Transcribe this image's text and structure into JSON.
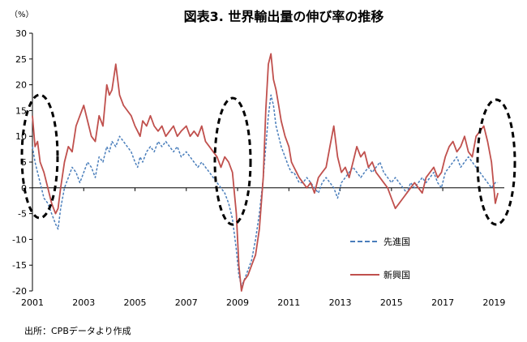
{
  "chart_data": {
    "type": "line",
    "title": "図表3. 世界輸出量の伸び率の推移",
    "unit_label": "（%）",
    "ylim": [
      -20,
      30
    ],
    "yticks": [
      30,
      25,
      20,
      15,
      10,
      5,
      0,
      -5,
      -10,
      -15,
      -20
    ],
    "xlim": [
      2001.0,
      2019.4
    ],
    "xticks": [
      2001,
      2003,
      2005,
      2007,
      2009,
      2011,
      2013,
      2015,
      2017,
      2019
    ],
    "xtick_labels": [
      "2001",
      "2003",
      "2005",
      "2007",
      "2009",
      "2011",
      "2013",
      "2015",
      "2017",
      "2019"
    ],
    "grid": false,
    "legend_placement": "right-middle",
    "source": "出所：CPBデータより作成",
    "series": [
      {
        "name": "先進国",
        "style": "dashed",
        "color": "#4a7ebb",
        "x": [
          2001.0,
          2001.1,
          2001.2,
          2001.3,
          2001.45,
          2001.6,
          2001.75,
          2001.9,
          2002.0,
          2002.1,
          2002.25,
          2002.4,
          2002.55,
          2002.7,
          2002.85,
          2003.0,
          2003.15,
          2003.3,
          2003.45,
          2003.6,
          2003.75,
          2003.9,
          2004.0,
          2004.1,
          2004.25,
          2004.4,
          2004.55,
          2004.7,
          2004.85,
          2005.0,
          2005.1,
          2005.2,
          2005.3,
          2005.45,
          2005.6,
          2005.75,
          2005.9,
          2006.05,
          2006.2,
          2006.35,
          2006.5,
          2006.65,
          2006.8,
          2007.0,
          2007.15,
          2007.3,
          2007.45,
          2007.6,
          2007.75,
          2007.9,
          2008.05,
          2008.2,
          2008.35,
          2008.5,
          2008.65,
          2008.8,
          2008.95,
          2009.05,
          2009.15,
          2009.25,
          2009.4,
          2009.55,
          2009.7,
          2009.85,
          2010.0,
          2010.1,
          2010.2,
          2010.3,
          2010.4,
          2010.5,
          2010.6,
          2010.7,
          2010.85,
          2011.0,
          2011.1,
          2011.2,
          2011.3,
          2011.4,
          2011.55,
          2011.7,
          2011.85,
          2012.0,
          2012.15,
          2012.3,
          2012.45,
          2012.6,
          2012.75,
          2012.9,
          2013.05,
          2013.2,
          2013.35,
          2013.5,
          2013.65,
          2013.8,
          2013.95,
          2014.1,
          2014.25,
          2014.4,
          2014.55,
          2014.7,
          2014.85,
          2015.0,
          2015.15,
          2015.3,
          2015.45,
          2015.6,
          2015.75,
          2015.9,
          2016.05,
          2016.2,
          2016.35,
          2016.5,
          2016.65,
          2016.8,
          2016.95,
          2017.1,
          2017.25,
          2017.4,
          2017.55,
          2017.7,
          2017.85,
          2018.0,
          2018.15,
          2018.3,
          2018.45,
          2018.6,
          2018.75,
          2018.9,
          2019.05,
          2019.15
        ],
        "values": [
          8,
          5,
          3,
          1,
          -2,
          -3,
          -5,
          -7,
          -8,
          -4,
          0,
          2,
          4,
          3,
          1,
          3,
          5,
          4,
          2,
          6,
          5,
          8,
          7,
          9,
          8,
          10,
          9,
          8,
          7,
          5,
          4,
          6,
          5,
          7,
          8,
          7,
          9,
          8,
          9,
          8,
          7,
          8,
          6,
          7,
          6,
          5,
          4,
          5,
          4,
          3,
          2,
          1,
          0,
          -1,
          -3,
          -6,
          -12,
          -17,
          -19,
          -18,
          -16,
          -14,
          -10,
          -5,
          2,
          8,
          14,
          18,
          16,
          12,
          10,
          8,
          6,
          4,
          3,
          3,
          2,
          1,
          1,
          2,
          1,
          0,
          -1,
          1,
          2,
          1,
          0,
          -2,
          1,
          2,
          3,
          4,
          3,
          2,
          3,
          4,
          3,
          4,
          5,
          3,
          2,
          1,
          2,
          1,
          0,
          -1,
          1,
          0,
          1,
          2,
          1,
          2,
          3,
          1,
          0,
          3,
          4,
          5,
          6,
          4,
          5,
          6,
          5,
          4,
          3,
          2,
          1,
          0,
          1,
          1
        ]
      },
      {
        "name": "新興国",
        "style": "solid",
        "color": "#c0504d",
        "x": [
          2001.0,
          2001.1,
          2001.2,
          2001.3,
          2001.45,
          2001.6,
          2001.75,
          2001.9,
          2002.0,
          2002.1,
          2002.25,
          2002.4,
          2002.55,
          2002.7,
          2002.85,
          2003.0,
          2003.15,
          2003.3,
          2003.45,
          2003.6,
          2003.75,
          2003.9,
          2004.0,
          2004.1,
          2004.25,
          2004.4,
          2004.55,
          2004.7,
          2004.85,
          2005.0,
          2005.1,
          2005.2,
          2005.3,
          2005.45,
          2005.6,
          2005.75,
          2005.9,
          2006.05,
          2006.2,
          2006.35,
          2006.5,
          2006.65,
          2006.8,
          2007.0,
          2007.15,
          2007.3,
          2007.45,
          2007.6,
          2007.75,
          2007.9,
          2008.05,
          2008.2,
          2008.35,
          2008.5,
          2008.65,
          2008.8,
          2008.95,
          2009.05,
          2009.15,
          2009.25,
          2009.4,
          2009.55,
          2009.7,
          2009.85,
          2010.0,
          2010.1,
          2010.2,
          2010.3,
          2010.4,
          2010.5,
          2010.6,
          2010.7,
          2010.85,
          2011.0,
          2011.1,
          2011.2,
          2011.3,
          2011.4,
          2011.55,
          2011.7,
          2011.85,
          2012.0,
          2012.15,
          2012.3,
          2012.45,
          2012.6,
          2012.75,
          2012.9,
          2013.05,
          2013.2,
          2013.35,
          2013.5,
          2013.65,
          2013.8,
          2013.95,
          2014.1,
          2014.25,
          2014.4,
          2014.55,
          2014.7,
          2014.85,
          2015.0,
          2015.15,
          2015.3,
          2015.45,
          2015.6,
          2015.75,
          2015.9,
          2016.05,
          2016.2,
          2016.35,
          2016.5,
          2016.65,
          2016.8,
          2016.95,
          2017.1,
          2017.25,
          2017.4,
          2017.55,
          2017.7,
          2017.85,
          2018.0,
          2018.15,
          2018.3,
          2018.45,
          2018.6,
          2018.75,
          2018.9,
          2019.05,
          2019.15
        ],
        "values": [
          14,
          8,
          9,
          5,
          3,
          0,
          -3,
          -5,
          -4,
          0,
          5,
          8,
          7,
          12,
          14,
          16,
          13,
          10,
          9,
          14,
          12,
          20,
          18,
          19,
          24,
          18,
          16,
          15,
          14,
          12,
          11,
          10,
          13,
          12,
          14,
          12,
          11,
          12,
          10,
          11,
          12,
          10,
          11,
          12,
          10,
          11,
          10,
          12,
          9,
          8,
          7,
          6,
          4,
          6,
          5,
          3,
          -5,
          -15,
          -20,
          -18,
          -17,
          -15,
          -13,
          -8,
          2,
          15,
          24,
          26,
          21,
          19,
          16,
          13,
          10,
          8,
          5,
          4,
          3,
          2,
          1,
          0,
          1,
          -1,
          2,
          3,
          4,
          8,
          12,
          6,
          3,
          4,
          2,
          5,
          8,
          6,
          7,
          4,
          5,
          3,
          2,
          1,
          0,
          -2,
          -4,
          -3,
          -2,
          -1,
          0,
          1,
          0,
          -1,
          2,
          3,
          4,
          2,
          3,
          6,
          8,
          9,
          7,
          8,
          10,
          7,
          6,
          10,
          11,
          12,
          9,
          5,
          -3,
          -1
        ]
      }
    ]
  }
}
